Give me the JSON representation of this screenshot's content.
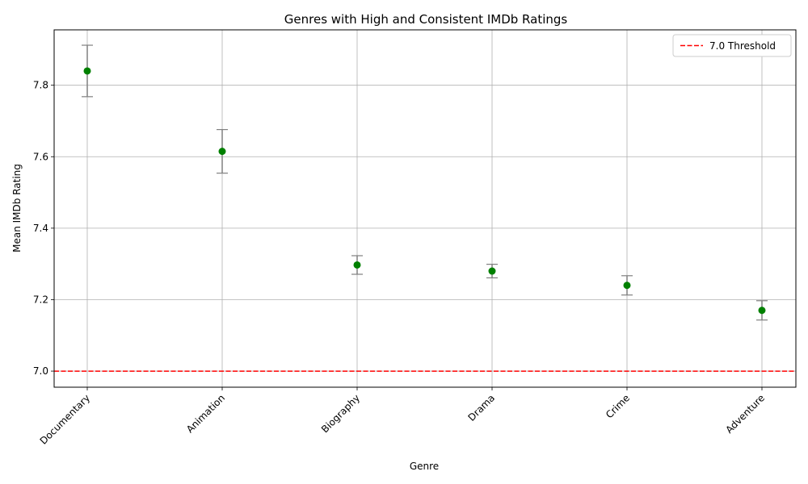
{
  "chart_data": {
    "type": "scatter",
    "title": "Genres with High and Consistent IMDb Ratings",
    "xlabel": "Genre",
    "ylabel": "Mean IMDb Rating",
    "categories": [
      "Documentary",
      "Animation",
      "Biography",
      "Drama",
      "Crime",
      "Adventure"
    ],
    "series": [
      {
        "values": [
          7.84,
          7.615,
          7.297,
          7.28,
          7.24,
          7.17
        ],
        "error": [
          0.072,
          0.061,
          0.026,
          0.019,
          0.027,
          0.027
        ],
        "marker_color": "#008000",
        "error_color": "#808080"
      }
    ],
    "ylim": [
      6.955,
      7.955
    ],
    "yticks": [
      7.0,
      7.2,
      7.4,
      7.6,
      7.8
    ],
    "ytick_labels": [
      "7.0",
      "7.2",
      "7.4",
      "7.6",
      "7.8"
    ],
    "threshold": {
      "value": 7.0,
      "label": "7.0 Threshold",
      "color": "#ff0000"
    },
    "grid": true,
    "legend_position": "top-right"
  }
}
